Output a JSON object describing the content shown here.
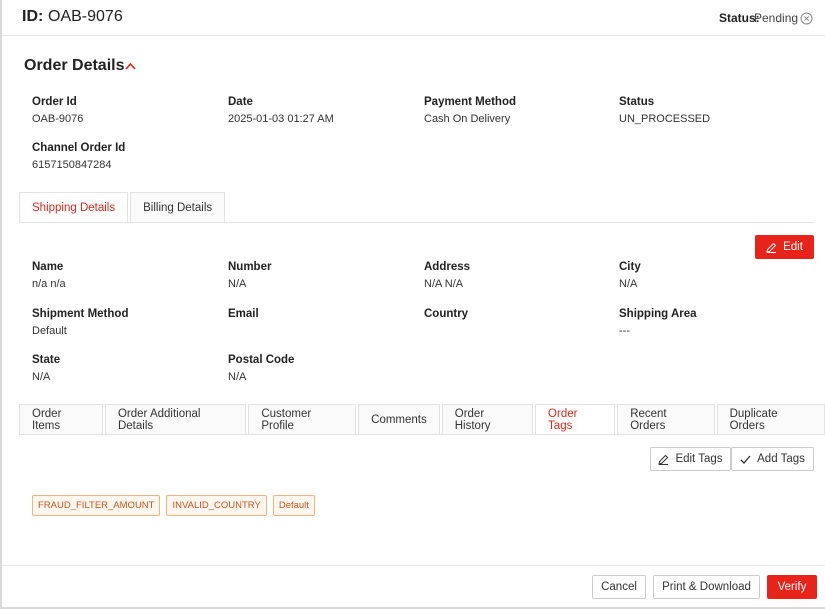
{
  "header": {
    "id_label": "ID:",
    "id": "OAB-9076",
    "status_label": "Status:",
    "status": "Pending"
  },
  "order_details": {
    "title": "Order Details",
    "fields": [
      {
        "label": "Order Id",
        "value": "OAB-9076"
      },
      {
        "label": "Date",
        "value": "2025-01-03 01:27 AM"
      },
      {
        "label": "Payment Method",
        "value": "Cash On Delivery"
      },
      {
        "label": "Status",
        "value": "UN_PROCESSED"
      },
      {
        "label": "Channel Order Id",
        "value": "6157150847284"
      }
    ]
  },
  "address_tabs": {
    "tabs": [
      "Shipping Details",
      "Billing Details"
    ],
    "active": 0
  },
  "edit_button": "Edit",
  "shipping": {
    "fields": [
      {
        "label": "Name",
        "value": "n/a n/a"
      },
      {
        "label": "Number",
        "value": "N/A"
      },
      {
        "label": "Address",
        "value": "N/A N/A"
      },
      {
        "label": "City",
        "value": "N/A"
      },
      {
        "label": "Shipment Method",
        "value": "Default"
      },
      {
        "label": "Email"
      },
      {
        "label": "Country"
      },
      {
        "label": "Shipping Area",
        "value": "---"
      },
      {
        "label": "State",
        "value": "N/A"
      },
      {
        "label": "Postal Code",
        "value": "N/A"
      }
    ]
  },
  "order_tabs": {
    "tabs": [
      "Order Items",
      "Order Additional Details",
      "Customer Profile",
      "Comments",
      "Order History",
      "Order Tags",
      "Recent Orders",
      "Duplicate Orders"
    ],
    "active": 5
  },
  "tag_buttons": {
    "edit": "Edit Tags",
    "add": "Add Tags"
  },
  "tags": [
    "FRAUD_FILTER_AMOUNT",
    "INVALID_COUNTRY",
    "Default"
  ],
  "footer_buttons": {
    "cancel": "Cancel",
    "print": "Print & Download",
    "verify": "Verify"
  }
}
